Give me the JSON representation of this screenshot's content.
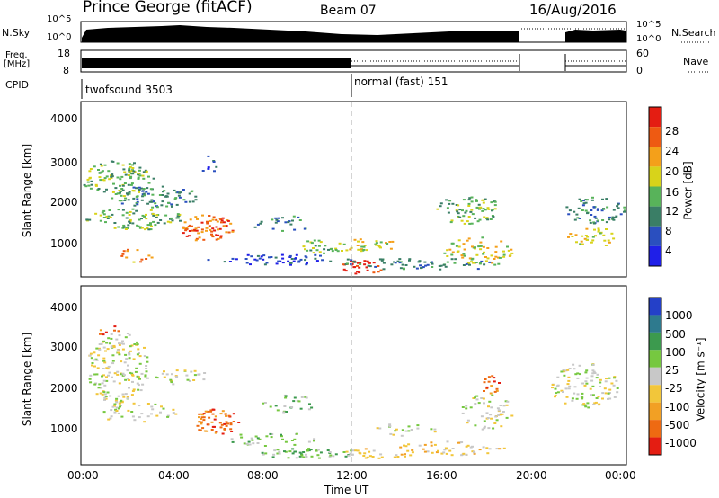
{
  "header": {
    "station": "Prince George (fitACF)",
    "beam": "Beam 07",
    "date": "16/Aug/2016"
  },
  "side_labels": {
    "nsky": "N.Sky",
    "freq_line1": "Freq.",
    "freq_line2": "[MHz]",
    "cpid": "CPID",
    "nsearch": "N.Search",
    "nave": "Nave"
  },
  "strip_ticks": {
    "nsky_left": [
      "10^5",
      "10^0"
    ],
    "nsky_right": [
      "10^5",
      "10^0"
    ],
    "freq_left": [
      "18",
      "8"
    ],
    "nave_right": [
      "60",
      "0"
    ]
  },
  "cpid_labels": [
    "twofsound 3503",
    "normal (fast) 151"
  ],
  "chart_data": [
    {
      "type": "heatmap",
      "name": "power",
      "ylabel": "Slant Range [km]",
      "yticks": [
        "4000",
        "3000",
        "2000",
        "1000"
      ],
      "ylim": [
        180,
        4500
      ],
      "colorbar_label": "Power [dB]",
      "colorbar_ticks": [
        "28",
        "24",
        "20",
        "16",
        "12",
        "8",
        "4"
      ],
      "colors": [
        "#1f1fe8",
        "#2a4fbf",
        "#3a7e66",
        "#58b35a",
        "#d8d31a",
        "#f4a01a",
        "#ee5a12",
        "#e41d12"
      ]
    },
    {
      "type": "heatmap",
      "name": "velocity",
      "ylabel": "Slant Range [km]",
      "yticks": [
        "4000",
        "3000",
        "2000",
        "1000"
      ],
      "ylim": [
        180,
        4500
      ],
      "colorbar_label": "Velocity [m s⁻¹]",
      "colorbar_ticks": [
        "1000",
        "500",
        "100",
        "25",
        "-25",
        "-100",
        "-500",
        "-1000"
      ],
      "colors": [
        "#2440c8",
        "#2e7a8e",
        "#3c9a4e",
        "#76c840",
        "#c8c8c8",
        "#f2c63a",
        "#f2a024",
        "#ee6a12",
        "#e41d12"
      ]
    }
  ],
  "time_axis": {
    "ticks": [
      "00:00",
      "04:00",
      "08:00",
      "12:00",
      "16:00",
      "20:00",
      "00:00"
    ],
    "label": "Time UT"
  }
}
